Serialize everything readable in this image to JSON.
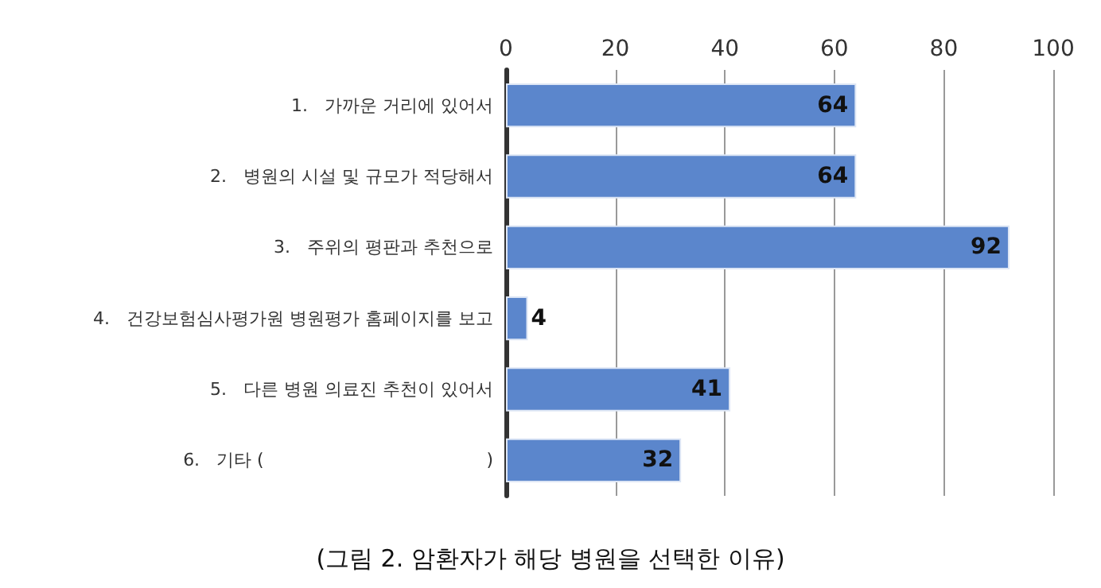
{
  "chart_data": {
    "type": "bar",
    "orientation": "horizontal",
    "title": "(그림 2. 암환자가 해당 병원을 선택한 이유)",
    "categories": [
      "1.   가까운 거리에 있어서",
      "2.   병원의 시설 및 규모가 적당해서",
      "3.   주위의 평판과 추천으로",
      "4.   건강보험심사평가원 병원평가 홈페이지를 보고",
      "5.   다른 병원 의료진 추천이 있어서",
      "6.   기타 (                                        )"
    ],
    "values": [
      64,
      64,
      92,
      4,
      41,
      32
    ],
    "color": "#5b86cc",
    "xlim": [
      0,
      100
    ],
    "xticks": [
      0,
      20,
      40,
      60,
      80,
      100
    ],
    "grid": "x",
    "data_labels": true
  }
}
